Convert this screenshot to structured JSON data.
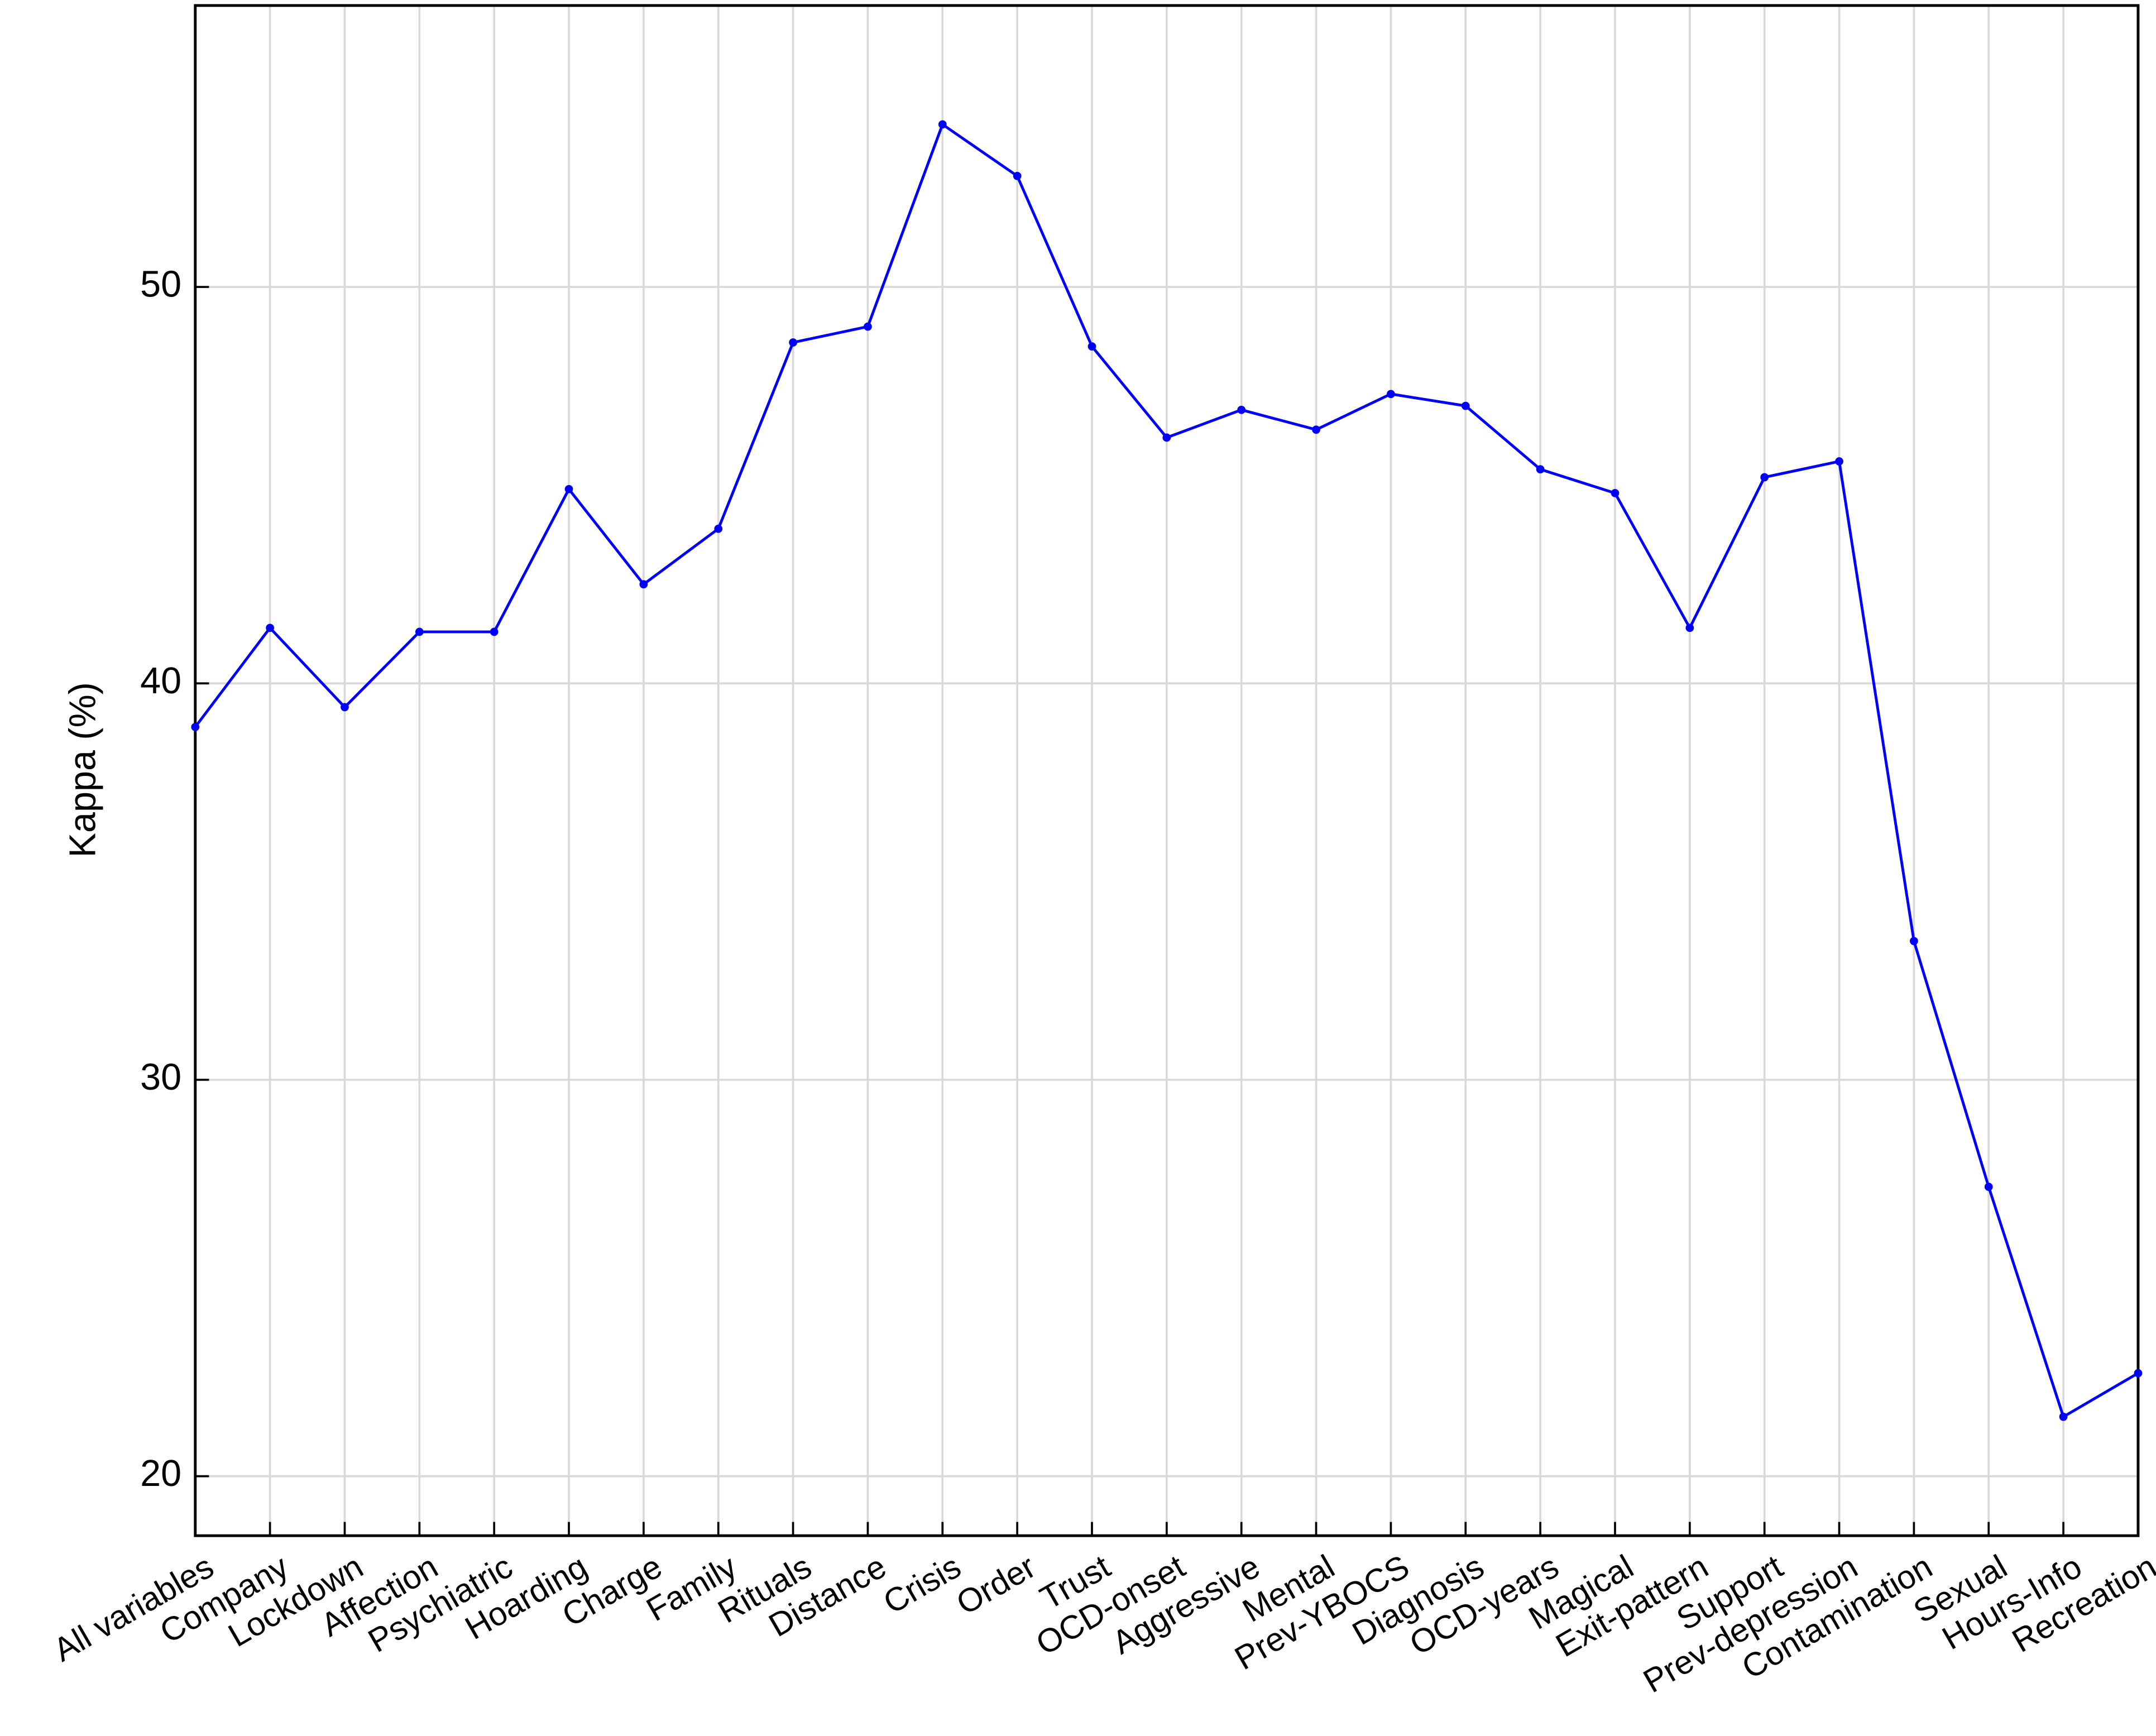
{
  "chart_data": {
    "type": "line",
    "y_label": "Kappa (%)",
    "categories": [
      "All variables",
      "Company",
      "Lockdown",
      "Affection",
      "Psychiatric",
      "Hoarding",
      "Charge",
      "Family",
      "Rituals",
      "Distance",
      "Crisis",
      "Order",
      "Trust",
      "OCD-onset",
      "Aggressive",
      "Mental",
      "Prev-YBOCS",
      "Diagnosis",
      "OCD-years",
      "Magical",
      "Exit-pattern",
      "Support",
      "Prev-depression",
      "Contamination",
      "Sexual",
      "Hours-Info",
      "Recreation"
    ],
    "series": [
      {
        "name": "Kappa",
        "color": "#0000ff",
        "values": [
          38.9,
          41.4,
          39.4,
          41.3,
          41.3,
          44.9,
          42.5,
          43.9,
          48.6,
          49.0,
          54.1,
          52.8,
          48.5,
          46.2,
          46.9,
          46.4,
          47.3,
          47.0,
          45.4,
          44.8,
          41.4,
          45.2,
          45.6,
          33.5,
          27.3,
          21.5,
          22.6
        ]
      }
    ],
    "ylim": [
      18.5,
      57.1
    ],
    "yticks": [
      20,
      30,
      40,
      50
    ],
    "grid": true
  }
}
